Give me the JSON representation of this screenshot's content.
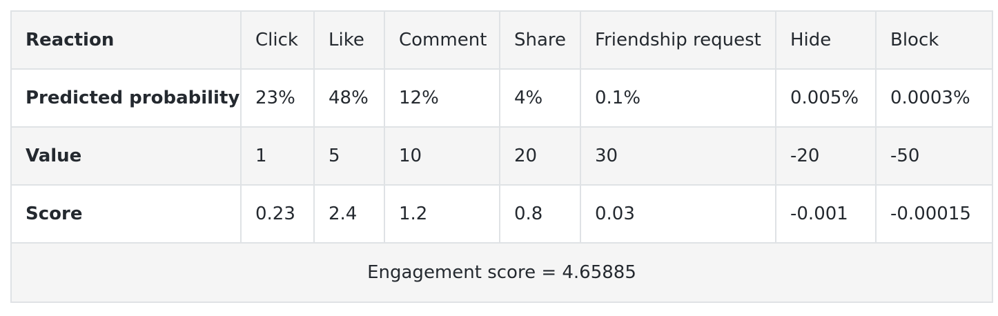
{
  "table": {
    "header": {
      "label": "Reaction",
      "columns": [
        "Click",
        "Like",
        "Comment",
        "Share",
        "Friendship request",
        "Hide",
        "Block"
      ]
    },
    "rows": [
      {
        "label": "Predicted probability",
        "cells": [
          "23%",
          "48%",
          "12%",
          "4%",
          "0.1%",
          "0.005%",
          "0.0003%"
        ]
      },
      {
        "label": "Value",
        "cells": [
          "1",
          "5",
          "10",
          "20",
          "30",
          "-20",
          "-50"
        ]
      },
      {
        "label": "Score",
        "cells": [
          "0.23",
          "2.4",
          "1.2",
          "0.8",
          "0.03",
          "-0.001",
          "-0.00015"
        ]
      }
    ],
    "total": "Engagement score = 4.65885"
  }
}
